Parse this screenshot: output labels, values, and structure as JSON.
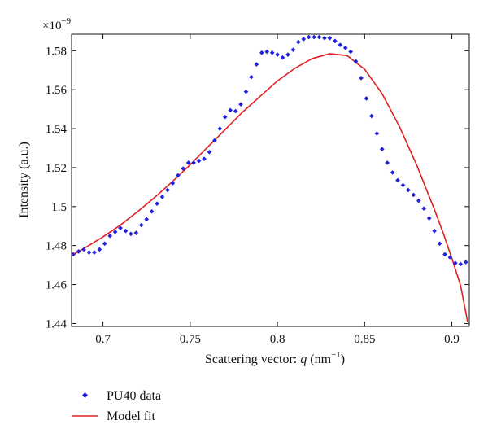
{
  "chart_data": {
    "type": "scatter",
    "xlabel_prefix": "Scattering vector: ",
    "xlabel_var": "q",
    "xlabel_unit_open": " (nm",
    "xlabel_unit_exp": "−1",
    "xlabel_unit_close": ")",
    "ylabel": "Intensity (a.u.)",
    "y_multiplier_base": "×10",
    "y_multiplier_exp": "−9",
    "xlim": [
      0.682,
      0.91
    ],
    "ylim": [
      1.4385,
      1.5885
    ],
    "xticks": [
      0.7,
      0.75,
      0.8,
      0.85,
      0.9
    ],
    "xtick_labels": [
      "0.7",
      "0.75",
      "0.8",
      "0.85",
      "0.9"
    ],
    "yticks": [
      1.44,
      1.46,
      1.48,
      1.5,
      1.52,
      1.54,
      1.56,
      1.58
    ],
    "ytick_labels": [
      "1.44",
      "1.46",
      "1.48",
      "1.5",
      "1.52",
      "1.54",
      "1.56",
      "1.58"
    ],
    "grid": false,
    "legend_position": "bottom-left-outside",
    "series": [
      {
        "name": "PU40 data",
        "kind": "scatter",
        "color": "#2222dd",
        "x": [
          0.683,
          0.686,
          0.689,
          0.692,
          0.695,
          0.698,
          0.701,
          0.704,
          0.707,
          0.71,
          0.713,
          0.716,
          0.719,
          0.722,
          0.725,
          0.728,
          0.731,
          0.734,
          0.737,
          0.74,
          0.743,
          0.746,
          0.749,
          0.752,
          0.755,
          0.758,
          0.761,
          0.764,
          0.767,
          0.77,
          0.773,
          0.776,
          0.779,
          0.782,
          0.785,
          0.788,
          0.791,
          0.794,
          0.797,
          0.8,
          0.803,
          0.806,
          0.809,
          0.812,
          0.815,
          0.818,
          0.821,
          0.824,
          0.827,
          0.83,
          0.833,
          0.836,
          0.839,
          0.842,
          0.845,
          0.848,
          0.851,
          0.854,
          0.857,
          0.86,
          0.863,
          0.866,
          0.869,
          0.872,
          0.875,
          0.878,
          0.881,
          0.884,
          0.887,
          0.89,
          0.893,
          0.896,
          0.899,
          0.902,
          0.905,
          0.908
        ],
        "y": [
          1.4755,
          1.477,
          1.478,
          1.4765,
          1.4765,
          1.478,
          1.481,
          1.485,
          1.487,
          1.489,
          1.4875,
          1.486,
          1.4865,
          1.4905,
          1.4935,
          1.4975,
          1.5015,
          1.505,
          1.5085,
          1.512,
          1.516,
          1.5195,
          1.5225,
          1.5225,
          1.5235,
          1.5245,
          1.528,
          1.534,
          1.54,
          1.546,
          1.5495,
          1.549,
          1.5525,
          1.559,
          1.5665,
          1.573,
          1.579,
          1.5795,
          1.579,
          1.578,
          1.5765,
          1.578,
          1.5805,
          1.5845,
          1.586,
          1.587,
          1.587,
          1.587,
          1.5865,
          1.5865,
          1.585,
          1.583,
          1.5815,
          1.5795,
          1.5745,
          1.566,
          1.5555,
          1.5465,
          1.5375,
          1.5295,
          1.5225,
          1.5175,
          1.5135,
          1.511,
          1.5085,
          1.506,
          1.503,
          1.499,
          1.494,
          1.4875,
          1.481,
          1.4755,
          1.474,
          1.471,
          1.4705,
          1.4715
        ]
      },
      {
        "name": "Model fit",
        "kind": "line",
        "color": "#e02020",
        "x": [
          0.682,
          0.69,
          0.7,
          0.71,
          0.72,
          0.73,
          0.74,
          0.75,
          0.76,
          0.77,
          0.78,
          0.79,
          0.8,
          0.81,
          0.82,
          0.83,
          0.84,
          0.85,
          0.86,
          0.87,
          0.88,
          0.89,
          0.895,
          0.9,
          0.905,
          0.909
        ],
        "y": [
          1.475,
          1.479,
          1.4845,
          1.4905,
          1.4975,
          1.505,
          1.513,
          1.5215,
          1.5305,
          1.5395,
          1.5485,
          1.5565,
          1.5645,
          1.571,
          1.576,
          1.5785,
          1.5775,
          1.5705,
          1.558,
          1.541,
          1.521,
          1.4985,
          1.4865,
          1.4735,
          1.4595,
          1.441
        ]
      }
    ]
  }
}
